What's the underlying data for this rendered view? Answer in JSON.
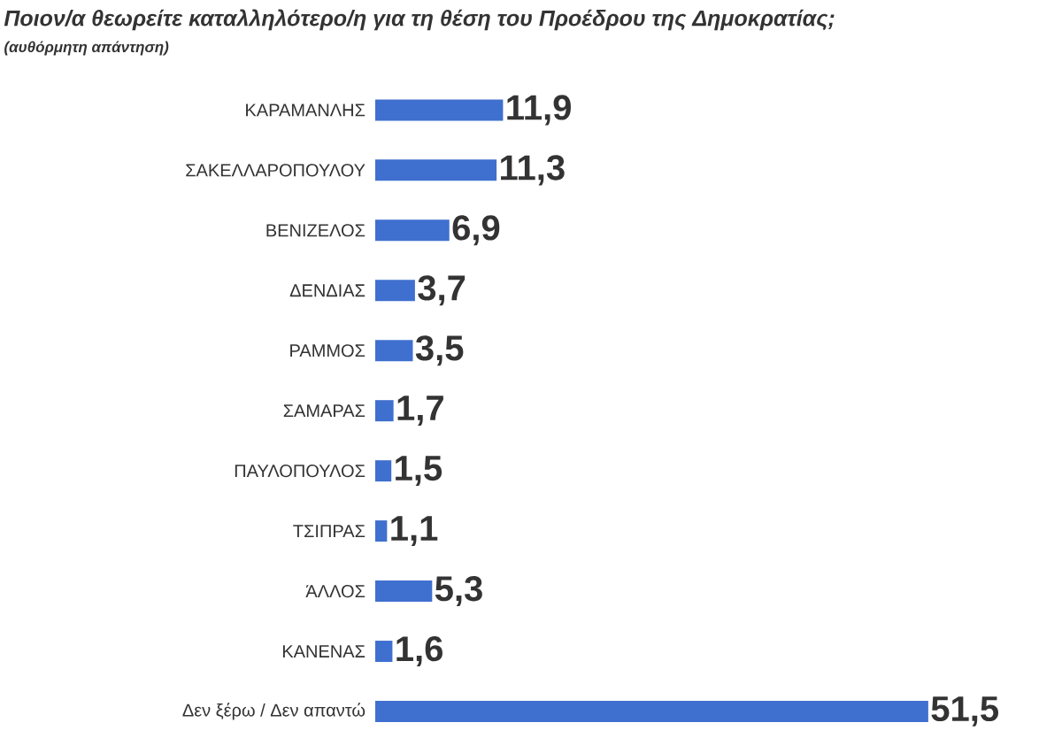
{
  "chart_data": {
    "type": "bar",
    "orientation": "horizontal",
    "title": "Ποιον/α  θεωρείτε καταλληλότερο/η  για τη θέση του Προέδρου της Δημοκρατίας;",
    "subtitle": "(αυθόρμητη απάντηση)",
    "categories": [
      "ΚΑΡΑΜΑΝΛΗΣ",
      "ΣΑΚΕΛΛΑΡΟΠΟΥΛΟΥ",
      "ΒΕΝΙΖΕΛΟΣ",
      "ΔΕΝΔΙΑΣ",
      "ΡΑΜΜΟΣ",
      "ΣΑΜΑΡΑΣ",
      "ΠΑΥΛΟΠΟΥΛΟΣ",
      "ΤΣΙΠΡΑΣ",
      "ΆΛΛΟΣ",
      "ΚΑΝΕΝΑΣ",
      "Δεν ξέρω / Δεν απαντώ"
    ],
    "values": [
      11.9,
      11.3,
      6.9,
      3.7,
      3.5,
      1.7,
      1.5,
      1.1,
      5.3,
      1.6,
      51.5
    ],
    "value_labels": [
      "11,9",
      "11,3",
      "6,9",
      "3,7",
      "3,5",
      "1,7",
      "1,5",
      "1,1",
      "5,3",
      "1,6",
      "51,5"
    ],
    "color": "#3f6fcf"
  }
}
